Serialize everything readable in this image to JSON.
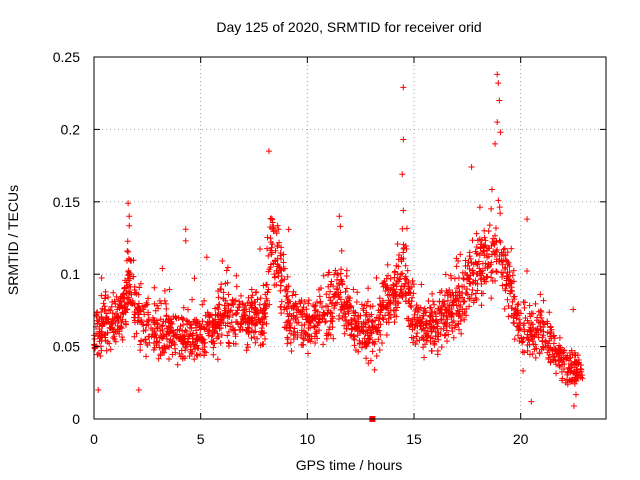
{
  "chart_data": {
    "type": "scatter",
    "title": "Day 125 of 2020, SRMTID for receiver orid",
    "xlabel": "GPS time / hours",
    "ylabel": "SRMTID / TECUs",
    "xlim": [
      0,
      24
    ],
    "ylim": [
      0,
      0.25
    ],
    "x_ticks": [
      0,
      5,
      10,
      15,
      20
    ],
    "y_ticks": [
      0,
      0.05,
      0.1,
      0.15,
      0.2,
      0.25
    ],
    "x_tick_labels": [
      "0",
      "5",
      "10",
      "15",
      "20"
    ],
    "y_tick_labels": [
      "0",
      "0.05",
      "0.1",
      "0.15",
      "0.2",
      "0.25"
    ],
    "grid": true,
    "marker": "+",
    "color": "#ff0000",
    "data_range_x": [
      0,
      22.9
    ],
    "profile": [
      [
        0.0,
        0.055
      ],
      [
        0.5,
        0.065
      ],
      [
        1.0,
        0.07
      ],
      [
        1.5,
        0.08
      ],
      [
        1.6,
        0.1
      ],
      [
        2.0,
        0.07
      ],
      [
        3.0,
        0.06
      ],
      [
        4.0,
        0.055
      ],
      [
        5.0,
        0.055
      ],
      [
        6.0,
        0.07
      ],
      [
        7.0,
        0.07
      ],
      [
        8.0,
        0.07
      ],
      [
        8.3,
        0.12
      ],
      [
        8.6,
        0.11
      ],
      [
        9.0,
        0.075
      ],
      [
        10.0,
        0.065
      ],
      [
        11.0,
        0.075
      ],
      [
        11.6,
        0.09
      ],
      [
        12.0,
        0.065
      ],
      [
        12.8,
        0.06
      ],
      [
        13.2,
        0.06
      ],
      [
        13.6,
        0.08
      ],
      [
        14.0,
        0.085
      ],
      [
        14.5,
        0.1
      ],
      [
        15.0,
        0.065
      ],
      [
        16.0,
        0.065
      ],
      [
        17.0,
        0.08
      ],
      [
        17.8,
        0.1
      ],
      [
        18.5,
        0.11
      ],
      [
        19.0,
        0.12
      ],
      [
        19.5,
        0.09
      ],
      [
        20.0,
        0.06
      ],
      [
        21.0,
        0.06
      ],
      [
        22.0,
        0.04
      ],
      [
        22.8,
        0.03
      ]
    ],
    "outliers": [
      [
        18.9,
        0.238
      ],
      [
        18.95,
        0.232
      ],
      [
        19.0,
        0.22
      ],
      [
        18.9,
        0.205
      ],
      [
        19.05,
        0.198
      ],
      [
        18.8,
        0.19
      ],
      [
        14.5,
        0.229
      ],
      [
        14.5,
        0.193
      ],
      [
        14.45,
        0.169
      ],
      [
        14.5,
        0.144
      ],
      [
        8.2,
        0.185
      ],
      [
        17.7,
        0.174
      ],
      [
        1.6,
        0.149
      ],
      [
        1.65,
        0.14
      ],
      [
        4.3,
        0.131
      ],
      [
        4.3,
        0.123
      ],
      [
        11.5,
        0.14
      ],
      [
        11.55,
        0.133
      ],
      [
        20.3,
        0.138
      ],
      [
        22.5,
        0.009
      ],
      [
        20.5,
        0.012
      ],
      [
        2.1,
        0.02
      ],
      [
        0.2,
        0.02
      ]
    ],
    "point_count": 2200,
    "isolated_markers": [
      {
        "x": 13.05,
        "y": 0.0,
        "marker": "square"
      }
    ]
  }
}
